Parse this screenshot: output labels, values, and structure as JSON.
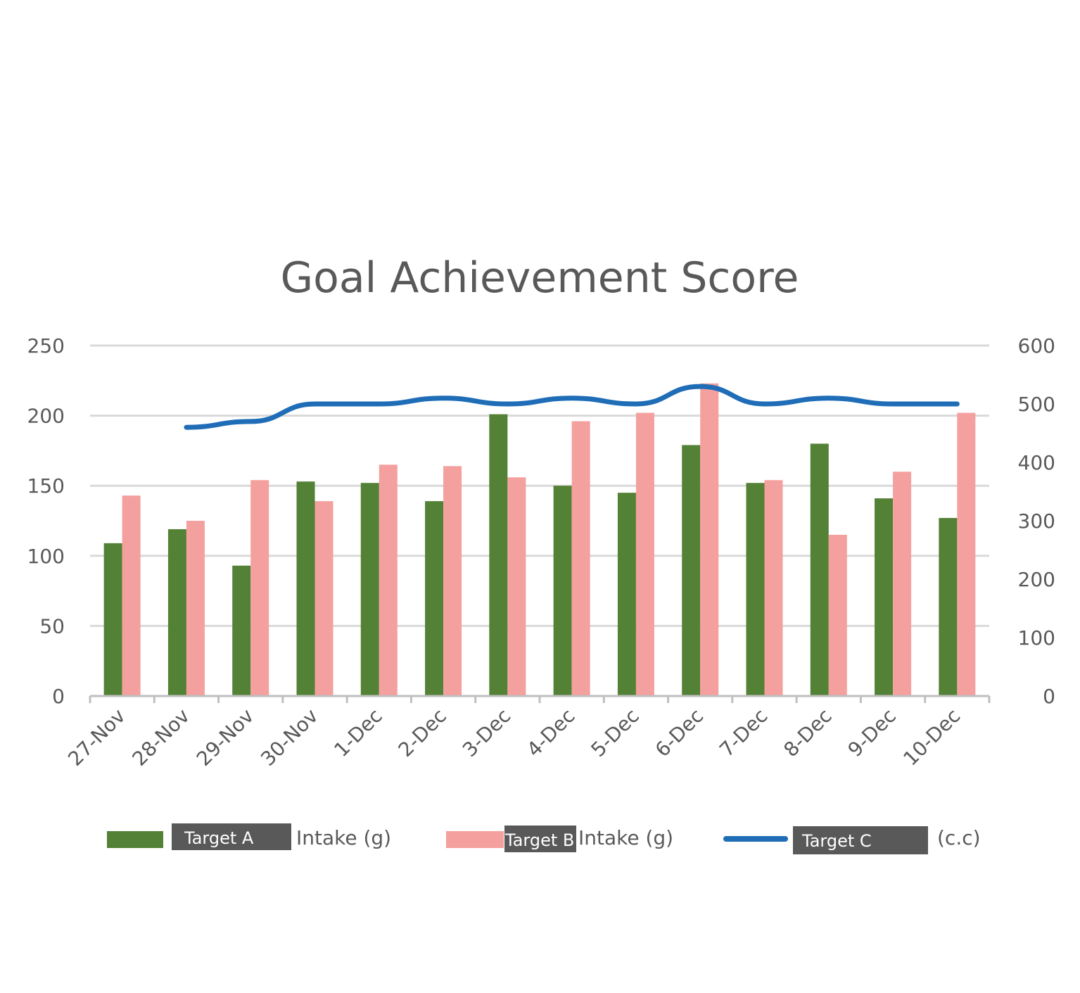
{
  "chart_data": {
    "type": "bar",
    "title": "Goal Achievement Score",
    "categories": [
      "27-Nov",
      "28-Nov",
      "29-Nov",
      "30-Nov",
      "1-Dec",
      "2-Dec",
      "3-Dec",
      "4-Dec",
      "5-Dec",
      "6-Dec",
      "7-Dec",
      "8-Dec",
      "9-Dec",
      "10-Dec"
    ],
    "series": [
      {
        "name": "Target A",
        "name_suffix": "Intake (g)",
        "type": "bar",
        "axis": "left",
        "color": "#538135",
        "values": [
          109,
          119,
          93,
          153,
          152,
          139,
          201,
          150,
          145,
          179,
          152,
          180,
          141,
          127
        ]
      },
      {
        "name": "Target B",
        "name_suffix": "Intake (g)",
        "type": "bar",
        "axis": "left",
        "color": "#f4a09e",
        "values": [
          143,
          125,
          154,
          139,
          165,
          164,
          156,
          196,
          202,
          223,
          154,
          115,
          160,
          202
        ]
      },
      {
        "name": "Target C",
        "name_suffix": "(c.c)",
        "type": "line",
        "axis": "right",
        "color": "#1f6db7",
        "values": [
          null,
          460,
          470,
          500,
          500,
          510,
          500,
          510,
          500,
          530,
          500,
          510,
          500,
          500
        ]
      }
    ],
    "y_left": {
      "min": 0,
      "max": 250,
      "ticks": [
        "0",
        "50",
        "100",
        "150",
        "200",
        "250"
      ]
    },
    "y_right": {
      "min": 0,
      "max": 600,
      "ticks": [
        "0",
        "100",
        "200",
        "300",
        "400",
        "500",
        "600"
      ]
    },
    "grid": true,
    "legend_position": "bottom"
  }
}
